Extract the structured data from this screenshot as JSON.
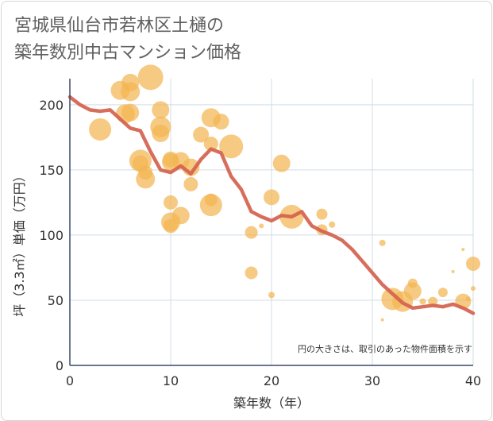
{
  "title_lines": [
    "宮城県仙台市若林区土樋の",
    "築年数別中古マンション価格"
  ],
  "chart_data": {
    "type": "scatter",
    "xlabel": "築年数（年）",
    "ylabel": "坪（3.3㎡）単価（万円）",
    "xlim": [
      0,
      40
    ],
    "ylim": [
      0,
      220
    ],
    "xticks": [
      "0",
      "10",
      "20",
      "30",
      "40"
    ],
    "yticks": [
      "0",
      "50",
      "100",
      "150",
      "200"
    ],
    "xtick_values": [
      0,
      10,
      20,
      30,
      40
    ],
    "ytick_values": [
      0,
      50,
      100,
      150,
      200
    ],
    "grid": true,
    "note": "円の大きさは、取引のあった物件面積を示す",
    "colors": {
      "bubble": "#f2b552",
      "line": "#d4624e",
      "grid": "#d0dce6",
      "axis": "#3a4a6b"
    },
    "points": [
      {
        "x": 3,
        "y": 181,
        "s": 14
      },
      {
        "x": 5,
        "y": 211,
        "s": 12
      },
      {
        "x": 5.5,
        "y": 193,
        "s": 12
      },
      {
        "x": 6,
        "y": 217,
        "s": 11
      },
      {
        "x": 6,
        "y": 210,
        "s": 12
      },
      {
        "x": 6,
        "y": 194,
        "s": 11
      },
      {
        "x": 7,
        "y": 157,
        "s": 14
      },
      {
        "x": 7,
        "y": 155,
        "s": 10
      },
      {
        "x": 7.5,
        "y": 143,
        "s": 12
      },
      {
        "x": 7.5,
        "y": 148,
        "s": 9
      },
      {
        "x": 8,
        "y": 221,
        "s": 16
      },
      {
        "x": 9,
        "y": 196,
        "s": 11
      },
      {
        "x": 9,
        "y": 183,
        "s": 13
      },
      {
        "x": 9,
        "y": 178,
        "s": 11
      },
      {
        "x": 10,
        "y": 158,
        "s": 10
      },
      {
        "x": 10,
        "y": 156,
        "s": 11
      },
      {
        "x": 10,
        "y": 125,
        "s": 9
      },
      {
        "x": 10,
        "y": 110,
        "s": 12
      },
      {
        "x": 10,
        "y": 107,
        "s": 9
      },
      {
        "x": 11,
        "y": 157,
        "s": 11
      },
      {
        "x": 11,
        "y": 115,
        "s": 11
      },
      {
        "x": 12,
        "y": 152,
        "s": 11
      },
      {
        "x": 12,
        "y": 139,
        "s": 9
      },
      {
        "x": 13,
        "y": 177,
        "s": 10
      },
      {
        "x": 14,
        "y": 190,
        "s": 12
      },
      {
        "x": 14,
        "y": 170,
        "s": 9
      },
      {
        "x": 14,
        "y": 127,
        "s": 8
      },
      {
        "x": 14,
        "y": 123,
        "s": 14
      },
      {
        "x": 15,
        "y": 187,
        "s": 10
      },
      {
        "x": 16,
        "y": 168,
        "s": 15
      },
      {
        "x": 18,
        "y": 102,
        "s": 8
      },
      {
        "x": 18,
        "y": 71,
        "s": 8
      },
      {
        "x": 19,
        "y": 107,
        "s": 3
      },
      {
        "x": 20,
        "y": 129,
        "s": 10
      },
      {
        "x": 20,
        "y": 54,
        "s": 4
      },
      {
        "x": 21,
        "y": 155,
        "s": 11
      },
      {
        "x": 22,
        "y": 114,
        "s": 15
      },
      {
        "x": 25,
        "y": 116,
        "s": 7
      },
      {
        "x": 25,
        "y": 104,
        "s": 7
      },
      {
        "x": 26,
        "y": 108,
        "s": 4
      },
      {
        "x": 31,
        "y": 94,
        "s": 4
      },
      {
        "x": 32,
        "y": 51,
        "s": 14
      },
      {
        "x": 33,
        "y": 49,
        "s": 13
      },
      {
        "x": 34,
        "y": 57,
        "s": 11
      },
      {
        "x": 34,
        "y": 63,
        "s": 6
      },
      {
        "x": 35,
        "y": 49,
        "s": 4
      },
      {
        "x": 36,
        "y": 49,
        "s": 6
      },
      {
        "x": 37,
        "y": 56,
        "s": 6
      },
      {
        "x": 38,
        "y": 72,
        "s": 2
      },
      {
        "x": 39,
        "y": 49,
        "s": 10
      },
      {
        "x": 39,
        "y": 89,
        "s": 2
      },
      {
        "x": 39.5,
        "y": 51,
        "s": 3
      },
      {
        "x": 40,
        "y": 78,
        "s": 9
      },
      {
        "x": 40,
        "y": 59,
        "s": 3
      },
      {
        "x": 31,
        "y": 35,
        "s": 2
      }
    ],
    "trend": {
      "x": [
        0,
        1,
        2,
        3,
        4,
        5,
        6,
        7,
        8,
        9,
        10,
        11,
        12,
        13,
        14,
        15,
        16,
        17,
        18,
        19,
        20,
        21,
        22,
        23,
        24,
        25,
        26,
        27,
        28,
        29,
        30,
        31,
        32,
        33,
        34,
        35,
        36,
        37,
        38,
        39,
        40
      ],
      "y": [
        206,
        200,
        196,
        195,
        196,
        189,
        182,
        180,
        164,
        150,
        148,
        153,
        147,
        158,
        166,
        163,
        145,
        135,
        118,
        114,
        111,
        115,
        114,
        118,
        107,
        103,
        100,
        96,
        89,
        80,
        71,
        62,
        55,
        48,
        44,
        45,
        46,
        45,
        47,
        44,
        40
      ]
    }
  }
}
